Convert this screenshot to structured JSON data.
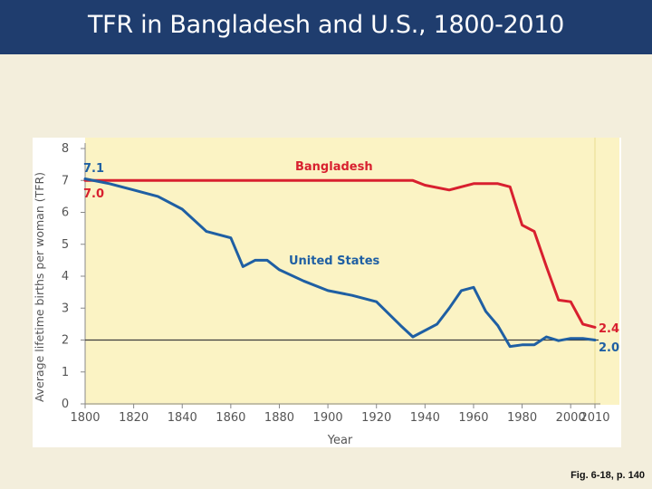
{
  "slide": {
    "title": "TFR in Bangladesh and U.S., 1800-2010",
    "caption": "Fig. 6-18, p. 140"
  },
  "chart_data": {
    "type": "line",
    "title": "",
    "xlabel": "Year",
    "ylabel": "Average lifetime births per woman (TFR)",
    "xlim": [
      1800,
      2010
    ],
    "ylim": [
      0,
      8
    ],
    "xticks": [
      1800,
      1820,
      1840,
      1860,
      1880,
      1900,
      1920,
      1940,
      1960,
      1980,
      2000,
      2010
    ],
    "yticks": [
      0,
      1,
      2,
      3,
      4,
      5,
      6,
      7,
      8
    ],
    "reference_line_y": 2.0,
    "series": [
      {
        "name": "Bangladesh",
        "color": "#d8202f",
        "x": [
          1800,
          1935,
          1940,
          1950,
          1955,
          1960,
          1965,
          1970,
          1975,
          1980,
          1985,
          1990,
          1995,
          2000,
          2005,
          2010
        ],
        "values": [
          7.0,
          7.0,
          6.85,
          6.7,
          6.8,
          6.9,
          6.9,
          6.9,
          6.8,
          5.6,
          5.4,
          4.3,
          3.25,
          3.2,
          2.5,
          2.4
        ]
      },
      {
        "name": "United States",
        "color": "#1f5fa3",
        "x": [
          1800,
          1810,
          1820,
          1830,
          1840,
          1850,
          1860,
          1865,
          1870,
          1875,
          1880,
          1890,
          1900,
          1910,
          1920,
          1930,
          1935,
          1945,
          1950,
          1955,
          1960,
          1965,
          1970,
          1975,
          1980,
          1985,
          1990,
          1995,
          2000,
          2005,
          2010
        ],
        "values": [
          7.05,
          6.9,
          6.7,
          6.5,
          6.1,
          5.4,
          5.2,
          4.3,
          4.5,
          4.5,
          4.2,
          3.85,
          3.55,
          3.4,
          3.2,
          2.45,
          2.1,
          2.5,
          3.0,
          3.55,
          3.65,
          2.9,
          2.45,
          1.8,
          1.85,
          1.85,
          2.1,
          1.98,
          2.05,
          2.05,
          2.0
        ]
      }
    ],
    "annotations": {
      "us_start": "7.1",
      "bangladesh_start": "7.0",
      "bangladesh_end": "2.4",
      "us_end": "2.0",
      "bangladesh_label": "Bangladesh",
      "us_label": "United States"
    }
  }
}
